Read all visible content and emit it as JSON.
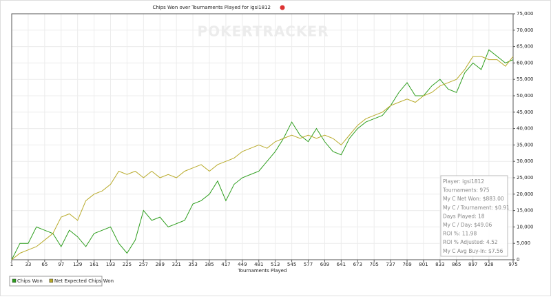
{
  "chart_data": {
    "type": "line",
    "title": "Chips Won over Tournaments Played for igsi1812",
    "watermark": "POKERTRACKER",
    "xlabel": "Tournaments Played",
    "x": [
      1,
      17,
      33,
      49,
      65,
      81,
      97,
      113,
      129,
      145,
      161,
      177,
      193,
      209,
      225,
      241,
      257,
      273,
      289,
      305,
      321,
      337,
      353,
      369,
      385,
      401,
      417,
      433,
      449,
      465,
      481,
      497,
      513,
      529,
      545,
      561,
      577,
      593,
      609,
      625,
      641,
      657,
      673,
      689,
      705,
      721,
      737,
      753,
      769,
      785,
      801,
      817,
      833,
      849,
      865,
      881,
      897,
      913,
      928,
      944,
      960,
      975
    ],
    "series": [
      {
        "name": "Chips Won",
        "color": "#2e9e1e",
        "values": [
          0,
          5000,
          5000,
          10000,
          9000,
          8000,
          4000,
          9000,
          7000,
          4000,
          8000,
          9000,
          10000,
          5000,
          2000,
          6000,
          15000,
          12000,
          13000,
          10000,
          11000,
          12000,
          17000,
          18000,
          20000,
          24000,
          18000,
          23000,
          25000,
          26000,
          27000,
          30000,
          33000,
          37000,
          42000,
          38000,
          36000,
          40000,
          36000,
          33000,
          32000,
          37000,
          40000,
          42000,
          43000,
          44000,
          47000,
          51000,
          54000,
          50000,
          50000,
          53000,
          55000,
          52000,
          51000,
          57000,
          60000,
          58000,
          64000,
          62000,
          60000,
          61000
        ]
      },
      {
        "name": "Net Expected Chips Won",
        "color": "#b8aa2a",
        "values": [
          0,
          2000,
          3000,
          4000,
          6000,
          8000,
          13000,
          14000,
          12000,
          18000,
          20000,
          21000,
          23000,
          27000,
          26000,
          27000,
          25000,
          27000,
          25000,
          26000,
          25000,
          27000,
          28000,
          29000,
          27000,
          29000,
          30000,
          31000,
          33000,
          34000,
          35000,
          34000,
          36000,
          37000,
          38000,
          37000,
          38000,
          37000,
          38000,
          37000,
          35000,
          38000,
          41000,
          43000,
          44000,
          45000,
          47000,
          48000,
          49000,
          48000,
          50000,
          51000,
          53000,
          54000,
          55000,
          58000,
          62000,
          62000,
          61000,
          61000,
          59000,
          62000
        ]
      }
    ],
    "xlim": [
      1,
      975
    ],
    "xticks": [
      1,
      33,
      65,
      97,
      129,
      161,
      193,
      225,
      257,
      289,
      321,
      353,
      385,
      417,
      449,
      481,
      513,
      545,
      577,
      609,
      641,
      673,
      705,
      737,
      769,
      801,
      833,
      865,
      897,
      928,
      975
    ],
    "ylim": [
      0,
      75000
    ],
    "yticks": [
      0,
      {
        "value": 5000,
        "label": "5,000"
      },
      {
        "value": 10000,
        "label": "10,000"
      },
      {
        "value": 15000,
        "label": "15,000"
      },
      {
        "value": 20000,
        "label": "20,000"
      },
      {
        "value": 25000,
        "label": "25,000"
      },
      {
        "value": 30000,
        "label": "30,000"
      },
      {
        "value": 35000,
        "label": "35,000"
      },
      {
        "value": 40000,
        "label": "40,000"
      },
      {
        "value": 45000,
        "label": "45,000"
      },
      {
        "value": 50000,
        "label": "50,000"
      },
      {
        "value": 55000,
        "label": "55,000"
      },
      {
        "value": 60000,
        "label": "60,000"
      },
      {
        "value": 65000,
        "label": "65,000"
      },
      {
        "value": 70000,
        "label": "70,000"
      },
      {
        "value": 75000,
        "label": "75,000"
      }
    ],
    "grid": true,
    "legend": "bottom-left",
    "stats": [
      "Player: igsi1812",
      "Tournaments: 975",
      "My C Net Won: $883.00",
      "My C / Tournament: $0.91",
      "Days Played: 18",
      "My C / Day: $49.06",
      "ROI %: 11.98",
      "ROI % Adjusted: 4.52",
      "My C Avg Buy-In: $7.56"
    ]
  }
}
